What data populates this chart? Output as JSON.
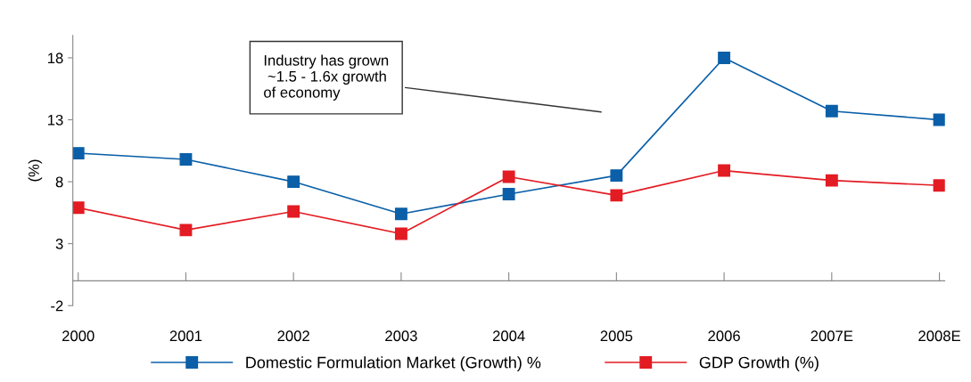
{
  "chart_data": {
    "type": "line",
    "ylabel": "(%)",
    "categories": [
      "2000",
      "2001",
      "2002",
      "2003",
      "2004",
      "2005",
      "2006",
      "2007E",
      "2008E"
    ],
    "series": [
      {
        "name": "Domestic Formulation Market (Growth) %",
        "color": "#0a5fa8",
        "values": [
          10.3,
          9.8,
          8.0,
          5.4,
          7.0,
          8.5,
          18.0,
          13.7,
          13.0
        ]
      },
      {
        "name": "GDP Growth (%)",
        "color": "#e31b23",
        "values": [
          5.9,
          4.1,
          5.6,
          3.8,
          8.4,
          6.9,
          8.9,
          8.1,
          7.7
        ]
      }
    ],
    "ylim": [
      -2,
      19.8
    ],
    "yticks": [
      -2,
      3,
      8,
      13,
      18
    ],
    "annotations": [
      "Industry has grown\n ~1.5 - 1.6x growth\nof economy"
    ],
    "grid": false,
    "legend": "bottom",
    "marker": "square",
    "line_style": "solid"
  }
}
